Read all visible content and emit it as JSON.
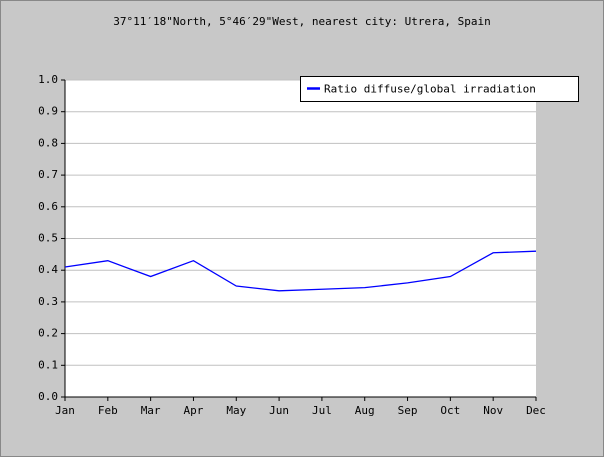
{
  "chart_data": {
    "type": "line",
    "title": "37°11′18\"North, 5°46′29\"West, nearest city: Utrera, Spain",
    "categories": [
      "Jan",
      "Feb",
      "Mar",
      "Apr",
      "May",
      "Jun",
      "Jul",
      "Aug",
      "Sep",
      "Oct",
      "Nov",
      "Dec"
    ],
    "series": [
      {
        "name": "Ratio diffuse/global irradiation",
        "color": "#0000ff",
        "values": [
          0.41,
          0.43,
          0.38,
          0.43,
          0.35,
          0.335,
          0.34,
          0.345,
          0.36,
          0.38,
          0.455,
          0.46
        ]
      }
    ],
    "ylim": [
      0,
      1
    ],
    "yticks": [
      {
        "value": 0,
        "label": "0.0"
      },
      0.1,
      0.2,
      0.3,
      0.4,
      0.5,
      0.6,
      0.7,
      0.8,
      0.9,
      {
        "value": 1,
        "label": "1.0"
      }
    ],
    "grid": true,
    "legend": "upper right"
  }
}
